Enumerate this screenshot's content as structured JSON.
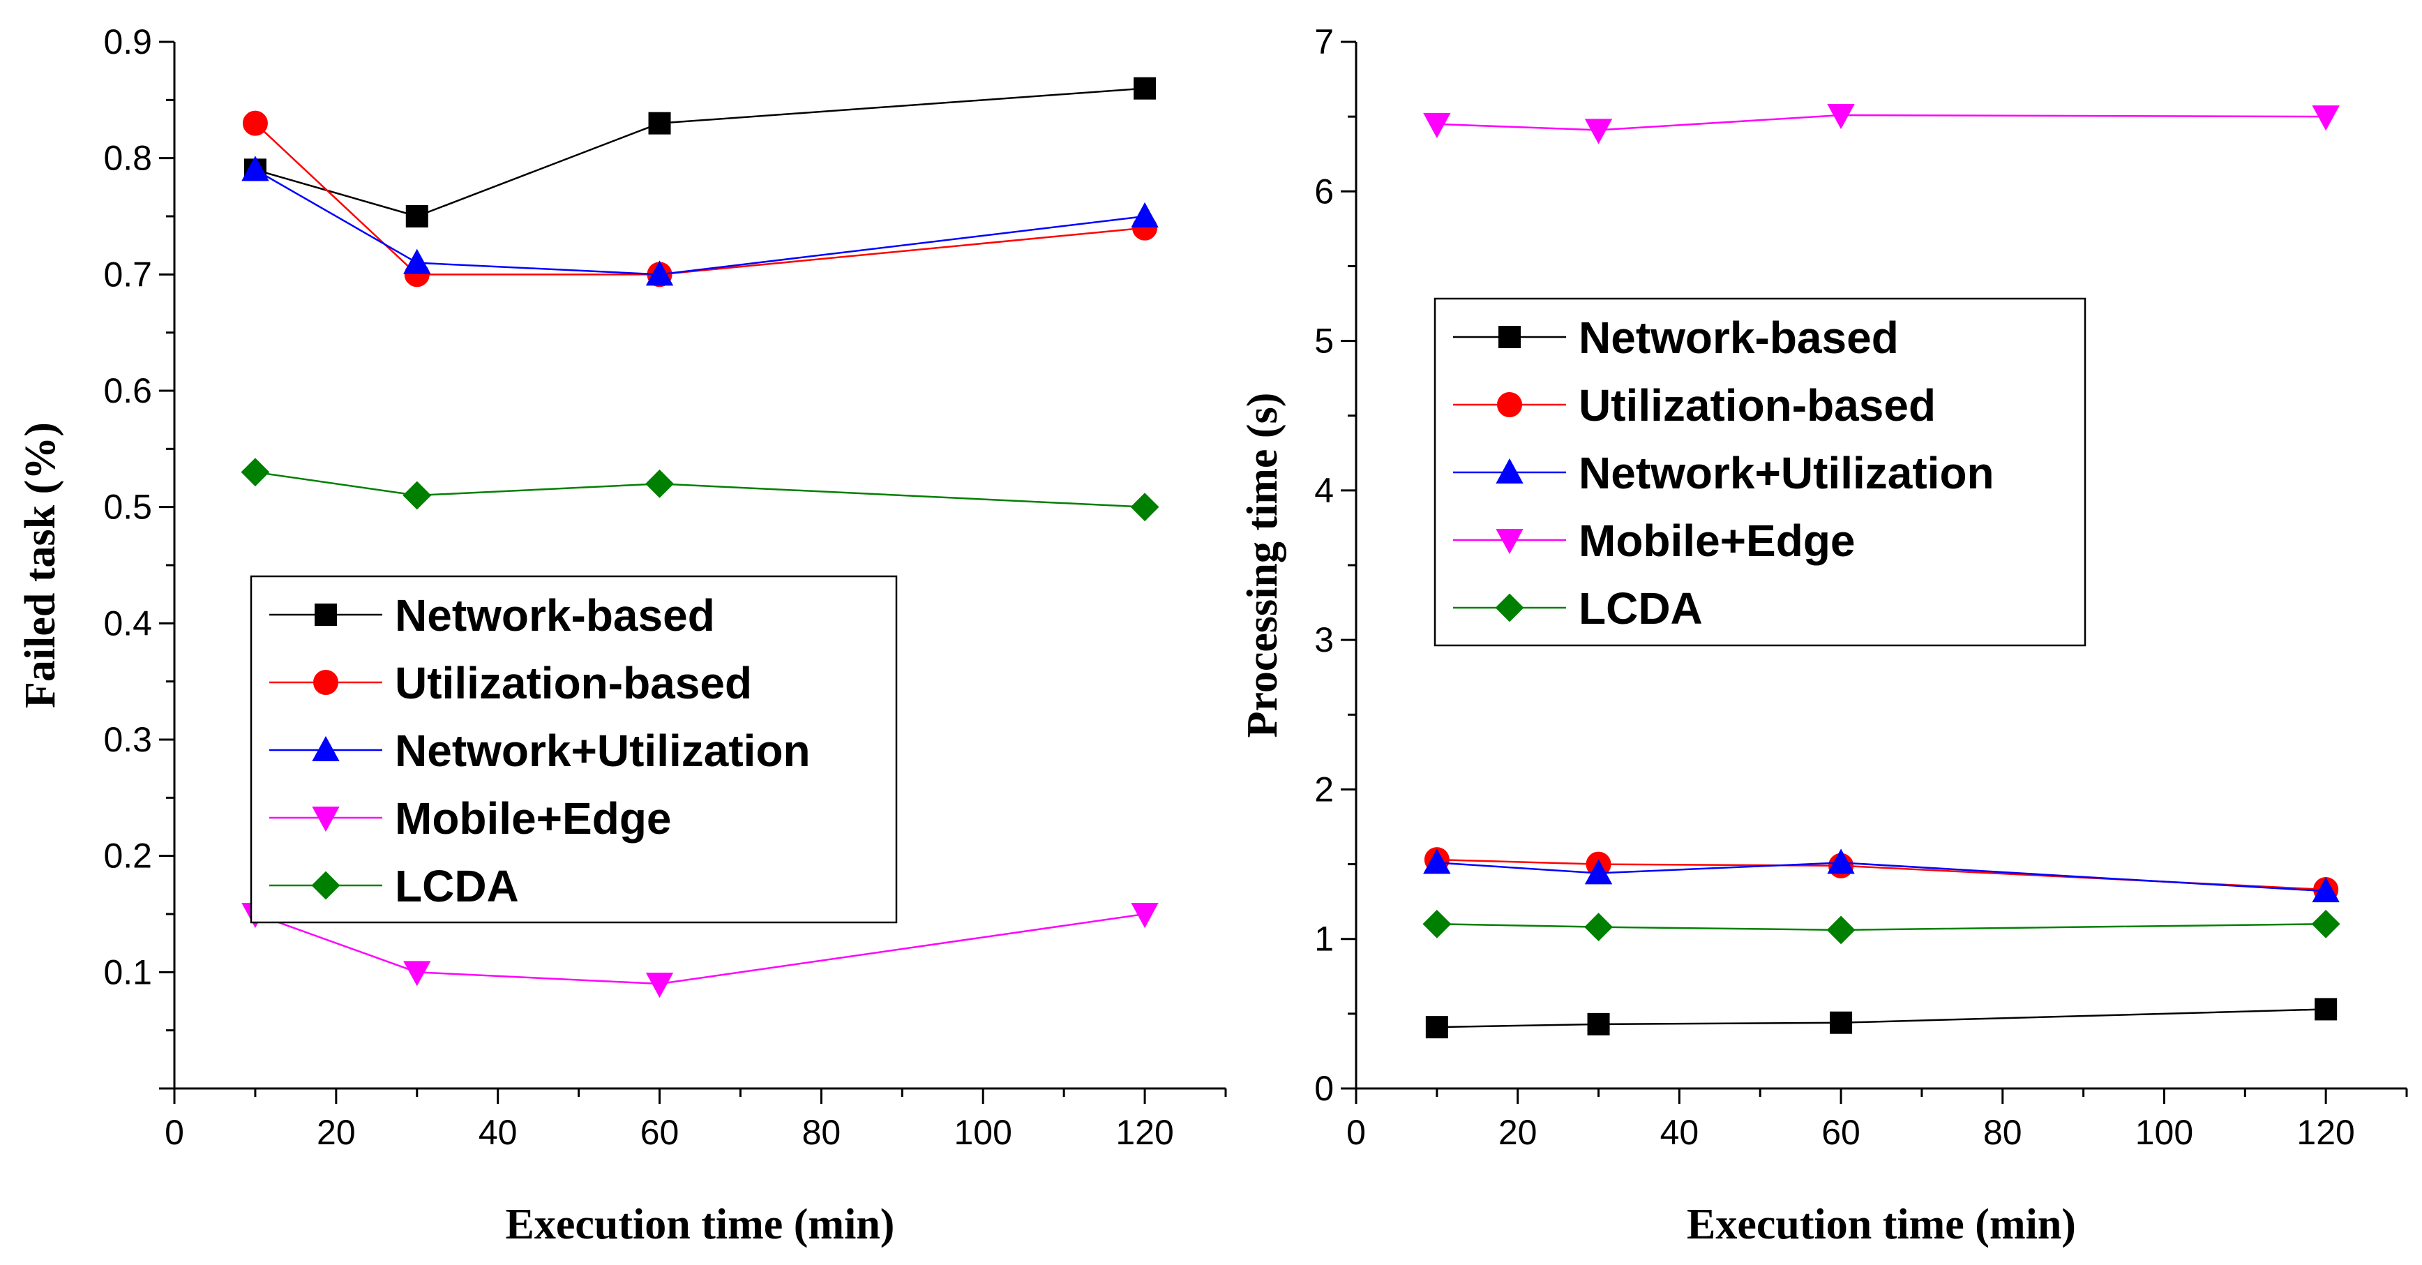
{
  "chart_data": [
    {
      "type": "line",
      "xlabel": "Execution time (min)",
      "ylabel": "Failed task (%)",
      "xlim": [
        0,
        130
      ],
      "ylim": [
        0,
        0.9
      ],
      "xticks": [
        0,
        20,
        40,
        60,
        80,
        100,
        120
      ],
      "yticks": [
        "0.1",
        "0.2",
        "0.3",
        "0.4",
        "0.5",
        "0.6",
        "0.7",
        "0.8",
        "0.9"
      ],
      "legend_position": "center-left",
      "x": [
        10,
        30,
        60,
        120
      ],
      "series": [
        {
          "name": "Network-based",
          "color": "#000000",
          "marker": "square",
          "values": [
            0.79,
            0.75,
            0.83,
            0.86
          ]
        },
        {
          "name": "Utilization-based",
          "color": "#ff0000",
          "marker": "circle",
          "values": [
            0.83,
            0.7,
            0.7,
            0.74
          ]
        },
        {
          "name": "Network+Utilization",
          "color": "#0000ff",
          "marker": "triangle-up",
          "values": [
            0.79,
            0.71,
            0.7,
            0.75
          ]
        },
        {
          "name": "Mobile+Edge",
          "color": "#ff00ff",
          "marker": "triangle-down",
          "values": [
            0.15,
            0.1,
            0.09,
            0.15
          ]
        },
        {
          "name": "LCDA",
          "color": "#008000",
          "marker": "diamond",
          "values": [
            0.53,
            0.51,
            0.52,
            0.5
          ]
        }
      ]
    },
    {
      "type": "line",
      "xlabel": "Execution time (min)",
      "ylabel": "Processing time (s)",
      "xlim": [
        0,
        130
      ],
      "ylim": [
        0,
        7
      ],
      "xticks": [
        0,
        20,
        40,
        60,
        80,
        100,
        120
      ],
      "yticks": [
        "0",
        "1",
        "2",
        "3",
        "4",
        "5",
        "6",
        "7"
      ],
      "legend_position": "upper-left",
      "x": [
        10,
        30,
        60,
        120
      ],
      "series": [
        {
          "name": "Network-based",
          "color": "#000000",
          "marker": "square",
          "values": [
            0.41,
            0.43,
            0.44,
            0.53
          ]
        },
        {
          "name": "Utilization-based",
          "color": "#ff0000",
          "marker": "circle",
          "values": [
            1.53,
            1.5,
            1.49,
            1.33
          ]
        },
        {
          "name": "Network+Utilization",
          "color": "#0000ff",
          "marker": "triangle-up",
          "values": [
            1.51,
            1.44,
            1.51,
            1.32
          ]
        },
        {
          "name": "Mobile+Edge",
          "color": "#ff00ff",
          "marker": "triangle-down",
          "values": [
            6.45,
            6.41,
            6.51,
            6.5
          ]
        },
        {
          "name": "LCDA",
          "color": "#008000",
          "marker": "diamond",
          "values": [
            1.1,
            1.08,
            1.06,
            1.1
          ]
        }
      ]
    }
  ]
}
